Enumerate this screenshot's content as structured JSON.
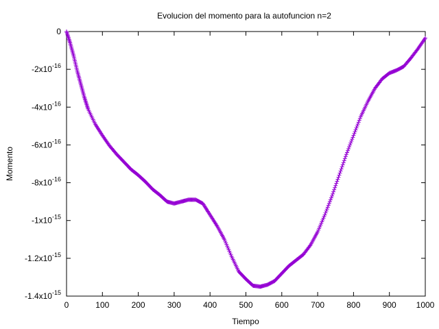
{
  "chart_data": {
    "type": "scatter",
    "title": "Evolucion del momento para la autofuncion n=2",
    "xlabel": "Tiempo",
    "ylabel": "Momento",
    "xlim": [
      0,
      1000
    ],
    "ylim": [
      -1.4e-15,
      0
    ],
    "grid": false,
    "legend": "none",
    "x_ticks": [
      {
        "value": 0,
        "label": "0"
      },
      {
        "value": 100,
        "label": "100"
      },
      {
        "value": 200,
        "label": "200"
      },
      {
        "value": 300,
        "label": "300"
      },
      {
        "value": 400,
        "label": "400"
      },
      {
        "value": 500,
        "label": "500"
      },
      {
        "value": 600,
        "label": "600"
      },
      {
        "value": 700,
        "label": "700"
      },
      {
        "value": 800,
        "label": "800"
      },
      {
        "value": 900,
        "label": "900"
      },
      {
        "value": 1000,
        "label": "1000"
      }
    ],
    "y_ticks": [
      {
        "value": 0,
        "base": "0",
        "exp": ""
      },
      {
        "value": -2e-16,
        "base": "-2x10",
        "exp": "-16"
      },
      {
        "value": -4e-16,
        "base": "-4x10",
        "exp": "-16"
      },
      {
        "value": -6e-16,
        "base": "-6x10",
        "exp": "-16"
      },
      {
        "value": -8e-16,
        "base": "-8x10",
        "exp": "-16"
      },
      {
        "value": -1e-15,
        "base": "-1x10",
        "exp": "-15"
      },
      {
        "value": -1.2e-15,
        "base": "-1.2x10",
        "exp": "-15"
      },
      {
        "value": -1.4e-15,
        "base": "-1.4x10",
        "exp": "-15"
      }
    ],
    "series": [
      {
        "color": "#9400d3",
        "marker": "plus",
        "points": [
          [
            0,
            0
          ],
          [
            10,
            -6e-17
          ],
          [
            20,
            -1.3e-16
          ],
          [
            30,
            -2.1e-16
          ],
          [
            40,
            -2.8e-16
          ],
          [
            50,
            -3.5e-16
          ],
          [
            60,
            -4.1e-16
          ],
          [
            80,
            -4.9e-16
          ],
          [
            100,
            -5.5e-16
          ],
          [
            120,
            -6.05e-16
          ],
          [
            140,
            -6.5e-16
          ],
          [
            160,
            -6.9e-16
          ],
          [
            180,
            -7.3e-16
          ],
          [
            200,
            -7.6e-16
          ],
          [
            220,
            -7.95e-16
          ],
          [
            240,
            -8.35e-16
          ],
          [
            260,
            -8.65e-16
          ],
          [
            280,
            -9e-16
          ],
          [
            300,
            -9.1e-16
          ],
          [
            320,
            -9e-16
          ],
          [
            340,
            -8.9e-16
          ],
          [
            360,
            -8.9e-16
          ],
          [
            380,
            -9.1e-16
          ],
          [
            400,
            -9.7e-16
          ],
          [
            420,
            -1.03e-15
          ],
          [
            440,
            -1.1e-15
          ],
          [
            460,
            -1.19e-15
          ],
          [
            480,
            -1.27e-15
          ],
          [
            500,
            -1.31e-15
          ],
          [
            520,
            -1.345e-15
          ],
          [
            540,
            -1.35e-15
          ],
          [
            560,
            -1.34e-15
          ],
          [
            580,
            -1.32e-15
          ],
          [
            600,
            -1.28e-15
          ],
          [
            620,
            -1.24e-15
          ],
          [
            640,
            -1.21e-15
          ],
          [
            660,
            -1.18e-15
          ],
          [
            680,
            -1.13e-15
          ],
          [
            700,
            -1.06e-15
          ],
          [
            720,
            -9.7e-16
          ],
          [
            740,
            -8.7e-16
          ],
          [
            760,
            -7.6e-16
          ],
          [
            780,
            -6.5e-16
          ],
          [
            800,
            -5.5e-16
          ],
          [
            820,
            -4.5e-16
          ],
          [
            840,
            -3.7e-16
          ],
          [
            860,
            -3e-16
          ],
          [
            880,
            -2.5e-16
          ],
          [
            900,
            -2.2e-16
          ],
          [
            920,
            -2.05e-16
          ],
          [
            940,
            -1.85e-16
          ],
          [
            960,
            -1.4e-16
          ],
          [
            980,
            -9e-17
          ],
          [
            1000,
            -3.5e-17
          ]
        ]
      }
    ]
  }
}
